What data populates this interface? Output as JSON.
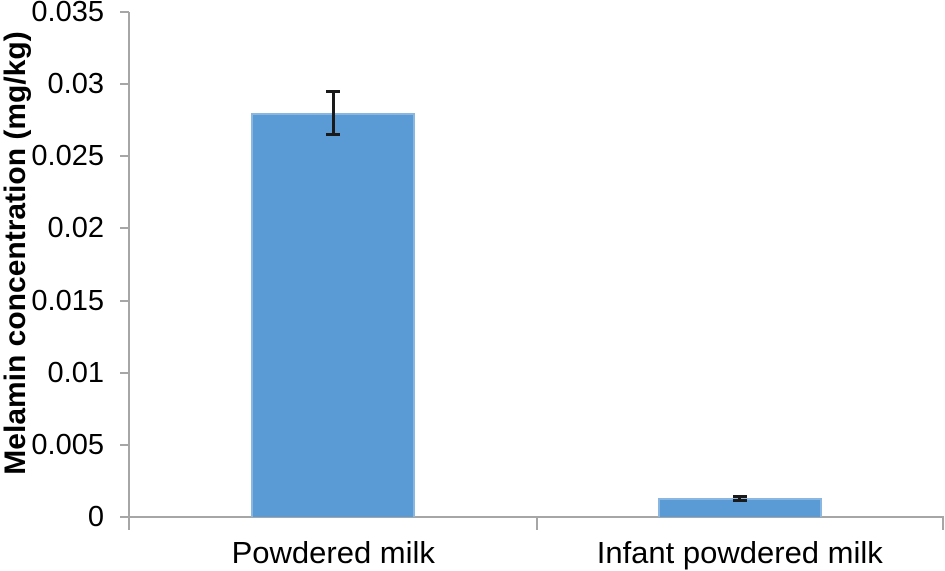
{
  "chart_data": {
    "type": "bar",
    "categories": [
      "Powdered milk",
      "Infant powdered milk"
    ],
    "values": [
      0.028,
      0.0013
    ],
    "errors": [
      0.0015,
      0.00015
    ],
    "ylabel": "Melamin concentration (mg/kg)",
    "xlabel": "",
    "ylim": [
      0,
      0.035
    ],
    "ytick_step": 0.005,
    "ytick_labels": [
      "0",
      "0.005",
      "0.01",
      "0.015",
      "0.02",
      "0.025",
      "0.03",
      "0.035"
    ],
    "grid": false,
    "legend_position": "none",
    "colors": {
      "bar_fill": "#5b9bd5",
      "bar_edge": "#8ab6e2",
      "axis_line": "#a6a6a6",
      "error_bar": "#1a1a1a",
      "text": "#000000",
      "background": "#ffffff"
    }
  }
}
